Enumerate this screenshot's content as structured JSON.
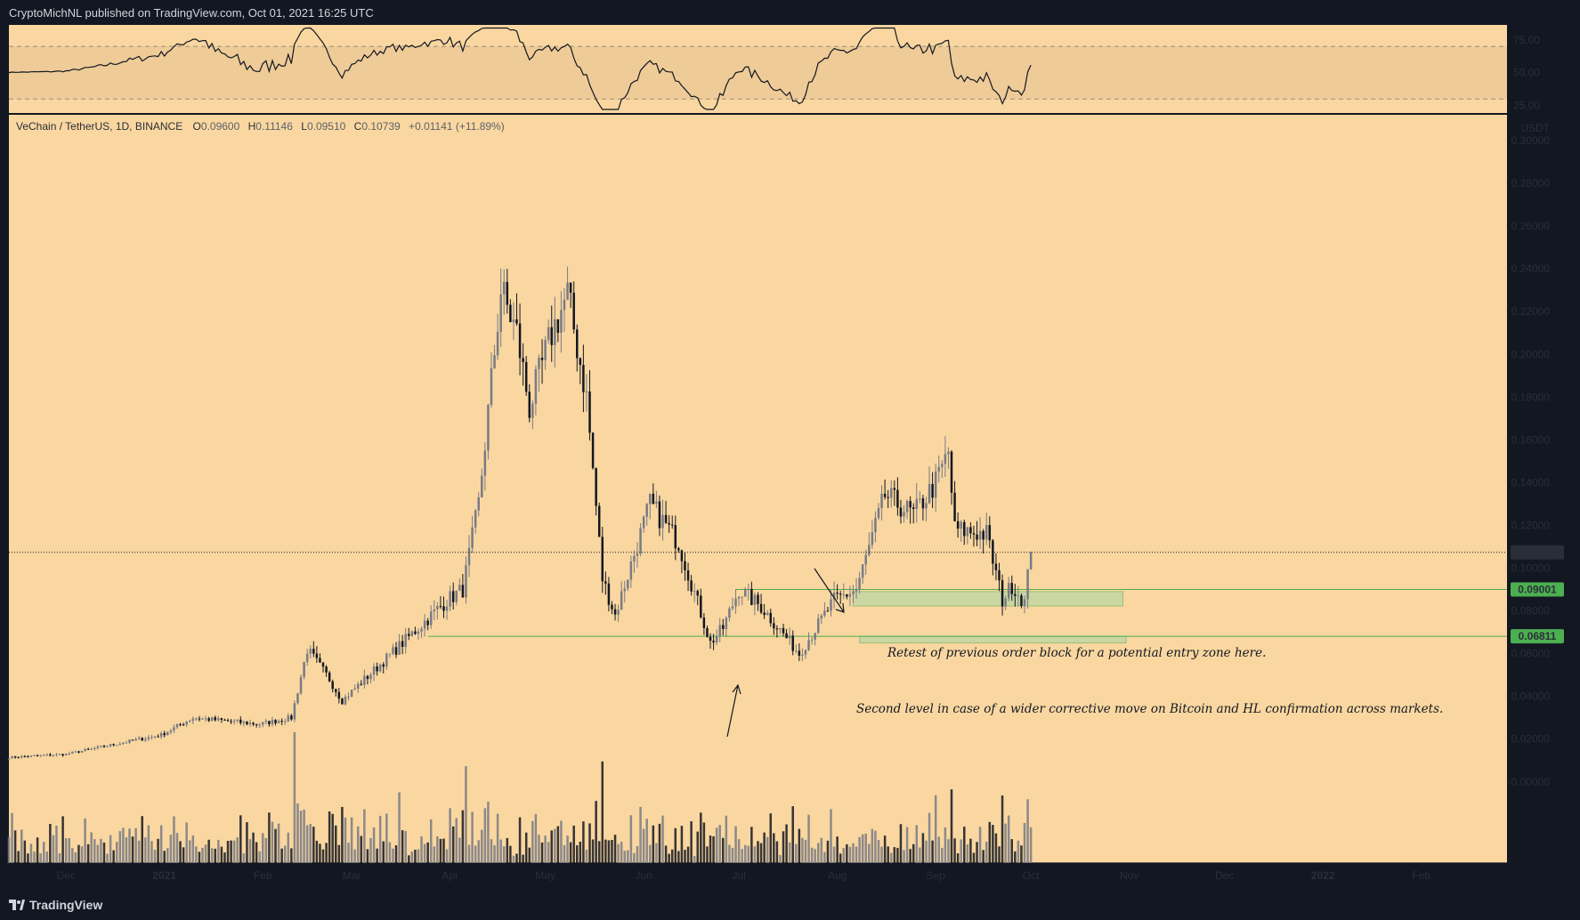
{
  "header": {
    "byline": "CryptoMichNL published on TradingView.com, Oct 01, 2021 16:25 UTC"
  },
  "footer": {
    "brand": "TradingView"
  },
  "legend": {
    "symbol": "VeChain / TetherUS, 1D, BINANCE",
    "o_label": "O",
    "o": "0.09600",
    "h_label": "H",
    "h": "0.11146",
    "l_label": "L",
    "l": "0.09510",
    "c_label": "C",
    "c": "0.10739",
    "change": "+0.01141 (+11.89%)"
  },
  "colors": {
    "background": "#fad7a0",
    "panel_frame": "#131722",
    "bull": "#787b86",
    "bear": "#131722",
    "zone": "#a5d6a7",
    "zone_line": "#4caf50",
    "price_tag": "#2a2e39"
  },
  "chart_data": {
    "type": "candlestick",
    "pair": "VET/USDT",
    "timeframe": "1D",
    "exchange": "BINANCE",
    "price_axis": {
      "unit": "USDT",
      "ticks": [
        "0.30000",
        "0.28000",
        "0.26000",
        "0.24000",
        "0.22000",
        "0.20000",
        "0.18000",
        "0.16000",
        "0.14000",
        "0.12000",
        "0.10000",
        "0.08000",
        "0.06000",
        "0.04000",
        "0.02000",
        "-0.00000"
      ],
      "ylim": [
        -0.016,
        0.3
      ]
    },
    "time_axis": {
      "ticks": [
        "Dec",
        "2021",
        "Feb",
        "Mar",
        "Apr",
        "May",
        "Jun",
        "Jul",
        "Aug",
        "Sep",
        "Oct",
        "Nov",
        "Dec",
        "2022",
        "Feb"
      ],
      "range": [
        "2020-11-13",
        "2022-02-28"
      ]
    },
    "rsi": {
      "ticks": [
        "75.00",
        "50.00",
        "25.00"
      ],
      "band": [
        30,
        70
      ],
      "ylim": [
        20,
        85
      ]
    },
    "price_anchors": [
      [
        "2020-11-13",
        0.0115
      ],
      [
        "2020-12-01",
        0.013
      ],
      [
        "2020-12-31",
        0.022
      ],
      [
        "2021-01-10",
        0.03
      ],
      [
        "2021-01-31",
        0.027
      ],
      [
        "2021-02-10",
        0.03
      ],
      [
        "2021-02-15",
        0.062
      ],
      [
        "2021-02-22",
        0.048
      ],
      [
        "2021-02-26",
        0.038
      ],
      [
        "2021-03-10",
        0.055
      ],
      [
        "2021-03-31",
        0.085
      ],
      [
        "2021-04-05",
        0.09
      ],
      [
        "2021-04-10",
        0.13
      ],
      [
        "2021-04-17",
        0.23
      ],
      [
        "2021-04-22",
        0.21
      ],
      [
        "2021-04-26",
        0.175
      ],
      [
        "2021-05-03",
        0.21
      ],
      [
        "2021-05-08",
        0.228
      ],
      [
        "2021-05-14",
        0.18
      ],
      [
        "2021-05-19",
        0.095
      ],
      [
        "2021-05-23",
        0.078
      ],
      [
        "2021-06-03",
        0.13
      ],
      [
        "2021-06-12",
        0.112
      ],
      [
        "2021-06-22",
        0.065
      ],
      [
        "2021-06-26",
        0.072
      ],
      [
        "2021-07-01",
        0.09
      ],
      [
        "2021-07-08",
        0.082
      ],
      [
        "2021-07-20",
        0.06
      ],
      [
        "2021-07-31",
        0.085
      ],
      [
        "2021-08-07",
        0.09
      ],
      [
        "2021-08-16",
        0.134
      ],
      [
        "2021-08-25",
        0.125
      ],
      [
        "2021-09-01",
        0.14
      ],
      [
        "2021-09-05",
        0.154
      ],
      [
        "2021-09-07",
        0.118
      ],
      [
        "2021-09-17",
        0.116
      ],
      [
        "2021-09-22",
        0.085
      ],
      [
        "2021-09-25",
        0.092
      ],
      [
        "2021-09-29",
        0.084
      ],
      [
        "2021-09-30",
        0.096
      ],
      [
        "2021-10-01",
        0.10739
      ]
    ],
    "current_price": "0.10739",
    "levels": [
      {
        "price": "0.09001",
        "zone": [
          0.0823,
          0.089
        ],
        "zone_range": [
          "2021-08-06",
          "2021-10-30"
        ]
      },
      {
        "price": "0.06811",
        "zone": [
          0.065,
          0.0681
        ],
        "zone_range": [
          "2021-08-08",
          "2021-10-31"
        ]
      }
    ],
    "annotations": [
      "Retest of previous order block for a potential entry zone here.",
      "Second level in case of a wider corrective move on Bitcoin and HL confirmation across markets."
    ]
  }
}
